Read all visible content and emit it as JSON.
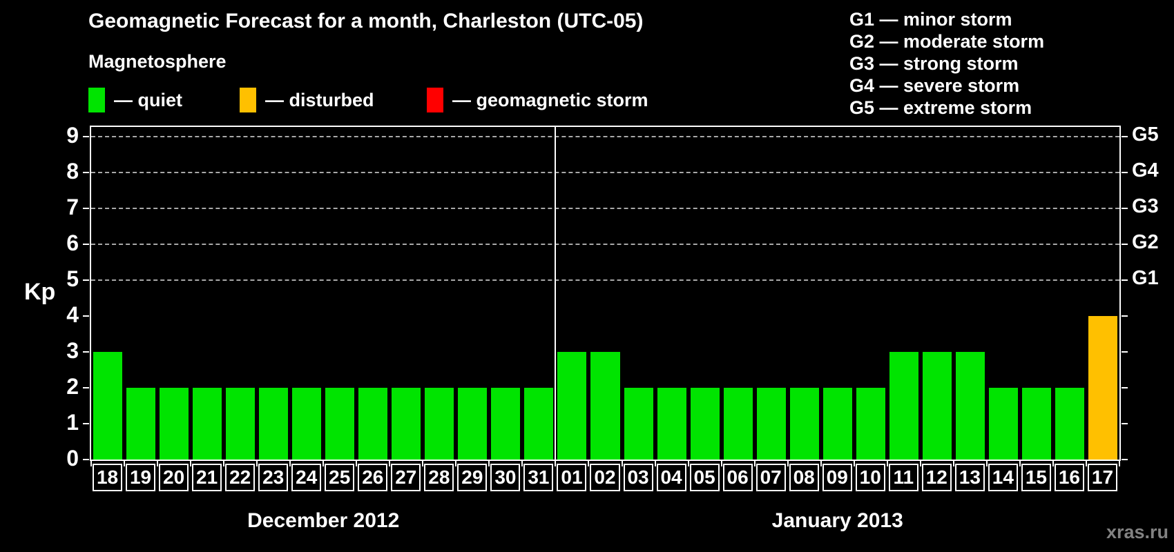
{
  "title": "Geomagnetic Forecast for a month, Charleston (UTC-05)",
  "subtitle": "Magnetosphere",
  "legend": {
    "items": [
      {
        "id": "quiet",
        "label": "— quiet",
        "color": "#00e400"
      },
      {
        "id": "disturbed",
        "label": "— disturbed",
        "color": "#ffc000"
      },
      {
        "id": "storm",
        "label": "— geomagnetic storm",
        "color": "#ff0000"
      }
    ]
  },
  "storm_scale": [
    "G1 — minor storm",
    "G2 — moderate storm",
    "G3 — strong storm",
    "G4 — severe storm",
    "G5 — extreme storm"
  ],
  "axis": {
    "ylabel": "Kp",
    "yticks": [
      0,
      1,
      2,
      3,
      4,
      5,
      6,
      7,
      8,
      9
    ],
    "right_labels": [
      {
        "label": "G1",
        "kp": 5
      },
      {
        "label": "G2",
        "kp": 6
      },
      {
        "label": "G3",
        "kp": 7
      },
      {
        "label": "G4",
        "kp": 8
      },
      {
        "label": "G5",
        "kp": 9
      }
    ]
  },
  "watermark": "xras.ru",
  "chart_data": {
    "type": "bar",
    "title": "Geomagnetic Forecast for a month, Charleston (UTC-05)",
    "ylabel": "Kp",
    "ylim": [
      0,
      9.3
    ],
    "grid_kp": [
      5,
      6,
      7,
      8,
      9
    ],
    "legend_position": "top",
    "categories": [
      "18",
      "19",
      "20",
      "21",
      "22",
      "23",
      "24",
      "25",
      "26",
      "27",
      "28",
      "29",
      "30",
      "31",
      "01",
      "02",
      "03",
      "04",
      "05",
      "06",
      "07",
      "08",
      "09",
      "10",
      "11",
      "12",
      "13",
      "14",
      "15",
      "16",
      "17"
    ],
    "values": [
      3,
      2,
      2,
      2,
      2,
      2,
      2,
      2,
      2,
      2,
      2,
      2,
      2,
      2,
      3,
      3,
      2,
      2,
      2,
      2,
      2,
      2,
      2,
      2,
      3,
      3,
      3,
      2,
      2,
      2,
      4
    ],
    "states": [
      "quiet",
      "quiet",
      "quiet",
      "quiet",
      "quiet",
      "quiet",
      "quiet",
      "quiet",
      "quiet",
      "quiet",
      "quiet",
      "quiet",
      "quiet",
      "quiet",
      "quiet",
      "quiet",
      "quiet",
      "quiet",
      "quiet",
      "quiet",
      "quiet",
      "quiet",
      "quiet",
      "quiet",
      "quiet",
      "quiet",
      "quiet",
      "quiet",
      "quiet",
      "quiet",
      "disturbed"
    ],
    "month_divider_index": 14,
    "months": [
      {
        "label": "December 2012",
        "days": 14
      },
      {
        "label": "January 2013",
        "days": 17
      }
    ]
  }
}
